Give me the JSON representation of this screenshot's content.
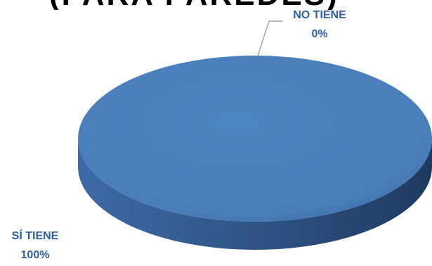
{
  "chart_data": {
    "type": "pie",
    "title": "(PARA PAREDES)",
    "categories": [
      "SÍ TIENE",
      "NO TIENE"
    ],
    "values": [
      100,
      0
    ],
    "value_labels": [
      "100%",
      "0%"
    ],
    "colors": [
      "#4a7ebb",
      "#4a7ebb"
    ],
    "style": "3d",
    "legend": "none"
  }
}
